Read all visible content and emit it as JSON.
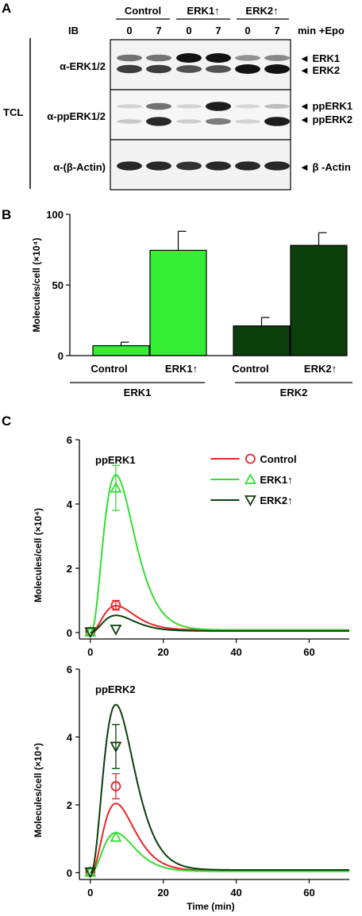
{
  "panel_a": {
    "letter": "A",
    "ib_label": "IB",
    "tcl_label": "TCL",
    "groups": [
      "Control",
      "ERK1↑",
      "ERK2↑"
    ],
    "times": [
      "0",
      "7",
      "0",
      "7",
      "0",
      "7"
    ],
    "time_unit": "min +Epo",
    "rows": [
      {
        "antibody": "α-ERK1/2",
        "bands": [
          "ERK1",
          "ERK2"
        ]
      },
      {
        "antibody": "α-ppERK1/2",
        "bands": [
          "ppERK1",
          "ppERK2"
        ]
      },
      {
        "antibody": "α-(β-Actin)",
        "bands": [
          "β -Actin"
        ]
      }
    ],
    "band_intensity": {
      "erk1": [
        0.55,
        0.55,
        1.0,
        1.0,
        0.4,
        0.45
      ],
      "erk2": [
        0.8,
        0.8,
        0.7,
        0.7,
        1.0,
        1.0
      ],
      "pperk1": [
        0.1,
        0.55,
        0.1,
        0.95,
        0.08,
        0.2
      ],
      "pperk2": [
        0.15,
        0.9,
        0.12,
        0.5,
        0.1,
        0.95
      ],
      "actin": [
        0.9,
        0.9,
        0.85,
        0.9,
        0.9,
        0.9
      ]
    }
  },
  "chart_data": [
    {
      "panel": "B",
      "type": "bar",
      "ylabel": "Molecules/cell (×10⁴)",
      "ylim": [
        0,
        100
      ],
      "yticks": [
        0,
        50,
        100
      ],
      "categories": [
        "Control",
        "ERK1↑",
        "Control",
        "ERK2↑"
      ],
      "groups": [
        {
          "label": "ERK1",
          "members": [
            0,
            1
          ]
        },
        {
          "label": "ERK2",
          "members": [
            2,
            3
          ]
        }
      ],
      "values": [
        7,
        74.5,
        21,
        78
      ],
      "errors": [
        2.5,
        13.5,
        6,
        9
      ],
      "colors": [
        "#33ee33",
        "#33ee33",
        "#0c3f0c",
        "#0c3f0c"
      ]
    },
    {
      "panel": "C",
      "type": "line",
      "title": "ppERK1",
      "ylabel": "Molecules/cell (×10⁴)",
      "xlim": [
        -3,
        71
      ],
      "ylim": [
        -0.2,
        6
      ],
      "xticks": [
        0,
        20,
        40,
        60
      ],
      "yticks": [
        0,
        2,
        4,
        6
      ],
      "legend": "top-right",
      "series": [
        {
          "name": "Control",
          "color": "#e8262a",
          "marker": "circle",
          "curve": {
            "peak": 0.78,
            "t_peak": 7,
            "baseline": 0.08
          },
          "points": [
            {
              "x": 0,
              "y": 0.02,
              "err": 0
            },
            {
              "x": 7,
              "y": 0.85,
              "err": 0.15
            }
          ]
        },
        {
          "name": "ERK1↑",
          "color": "#33dd33",
          "marker": "triangle-up",
          "curve": {
            "peak": 4.85,
            "t_peak": 7,
            "baseline": 0.08
          },
          "points": [
            {
              "x": 0,
              "y": 0.02,
              "err": 0
            },
            {
              "x": 7,
              "y": 4.5,
              "err": 0.7
            }
          ]
        },
        {
          "name": "ERK2↑",
          "color": "#0c3f0c",
          "marker": "triangle-down",
          "curve": {
            "peak": 0.5,
            "t_peak": 7,
            "baseline": 0.05
          },
          "points": [
            {
              "x": 0,
              "y": 0.02,
              "err": 0
            },
            {
              "x": 7,
              "y": 0.1,
              "err": 0
            }
          ]
        }
      ]
    },
    {
      "panel": "C",
      "type": "line",
      "title": "ppERK2",
      "xlabel": "Time (min)",
      "ylabel": "Molecules/cell (×10⁴)",
      "xlim": [
        -3,
        71
      ],
      "ylim": [
        -0.2,
        6
      ],
      "xticks": [
        0,
        20,
        40,
        60
      ],
      "yticks": [
        0,
        2,
        4,
        6
      ],
      "series": [
        {
          "name": "Control",
          "color": "#e8262a",
          "marker": "circle",
          "curve": {
            "peak": 2.0,
            "t_peak": 7,
            "baseline": 0.06
          },
          "points": [
            {
              "x": 0,
              "y": 0.02,
              "err": 0
            },
            {
              "x": 7,
              "y": 2.55,
              "err": 0.37
            }
          ]
        },
        {
          "name": "ERK1↑",
          "color": "#33dd33",
          "marker": "triangle-up",
          "curve": {
            "peak": 1.15,
            "t_peak": 7,
            "baseline": 0.04
          },
          "points": [
            {
              "x": 0,
              "y": 0.02,
              "err": 0
            },
            {
              "x": 7,
              "y": 1.05,
              "err": 0
            }
          ]
        },
        {
          "name": "ERK2↑",
          "color": "#0c3f0c",
          "marker": "triangle-down",
          "curve": {
            "peak": 4.9,
            "t_peak": 7,
            "baseline": 0.08
          },
          "points": [
            {
              "x": 0,
              "y": 0.02,
              "err": 0
            },
            {
              "x": 7,
              "y": 3.72,
              "err": 0.65
            }
          ]
        }
      ]
    }
  ],
  "panel_letters": {
    "b": "B",
    "c": "C"
  }
}
